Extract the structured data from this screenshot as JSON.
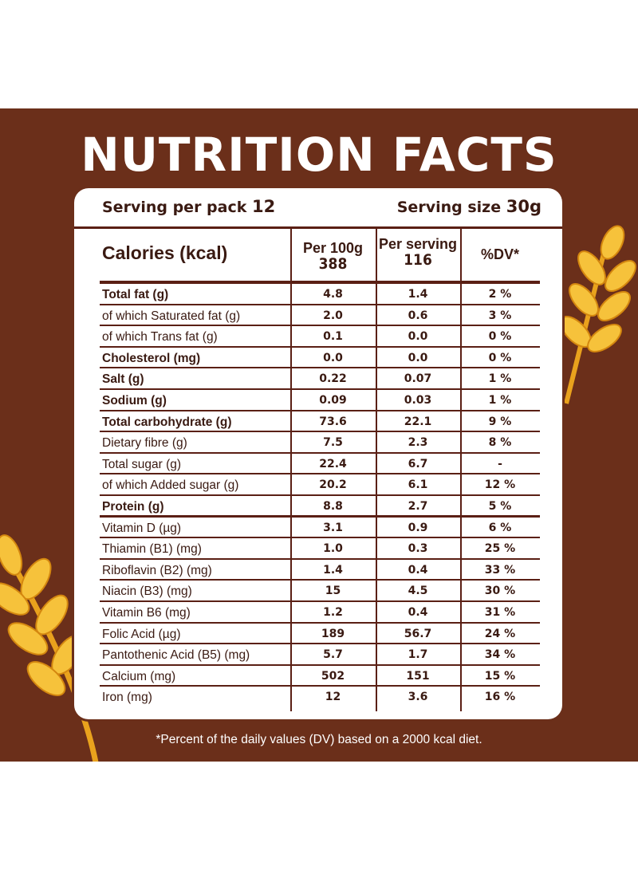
{
  "title": "NUTRITION FACTS",
  "serving": {
    "per_pack_label": "Serving per pack",
    "per_pack_value": "12",
    "size_label": "Serving size",
    "size_value": "30g"
  },
  "header": {
    "calories_label": "Calories (kcal)",
    "col1_label": "Per 100g",
    "col1_value": "388",
    "col2_label": "Per serving",
    "col2_value": "116",
    "col3_label": "%DV*"
  },
  "rows": [
    {
      "name": "Total fat (g)",
      "per100": "4.8",
      "perServing": "1.4",
      "dv": "2 %",
      "bold": true
    },
    {
      "name": "of which Saturated fat (g)",
      "per100": "2.0",
      "perServing": "0.6",
      "dv": "3 %",
      "bold": false
    },
    {
      "name": "of which Trans fat (g)",
      "per100": "0.1",
      "perServing": "0.0",
      "dv": "0 %",
      "bold": false
    },
    {
      "name": "Cholesterol (mg)",
      "per100": "0.0",
      "perServing": "0.0",
      "dv": "0 %",
      "bold": true
    },
    {
      "name": "Salt (g)",
      "per100": "0.22",
      "perServing": "0.07",
      "dv": "1 %",
      "bold": true
    },
    {
      "name": "Sodium (g)",
      "per100": "0.09",
      "perServing": "0.03",
      "dv": "1 %",
      "bold": true
    },
    {
      "name": "Total carbohydrate (g)",
      "per100": "73.6",
      "perServing": "22.1",
      "dv": "9 %",
      "bold": true
    },
    {
      "name": "Dietary fibre (g)",
      "per100": "7.5",
      "perServing": "2.3",
      "dv": "8 %",
      "bold": false
    },
    {
      "name": "Total sugar (g)",
      "per100": "22.4",
      "perServing": "6.7",
      "dv": "-",
      "bold": false
    },
    {
      "name": "of which Added sugar (g)",
      "per100": "20.2",
      "perServing": "6.1",
      "dv": "12 %",
      "bold": false
    },
    {
      "name": "Protein (g)",
      "per100": "8.8",
      "perServing": "2.7",
      "dv": "5 %",
      "bold": true
    },
    {
      "name": "Vitamin D (µg)",
      "per100": "3.1",
      "perServing": "0.9",
      "dv": "6 %",
      "bold": false
    },
    {
      "name": "Thiamin (B1) (mg)",
      "per100": "1.0",
      "perServing": "0.3",
      "dv": "25 %",
      "bold": false
    },
    {
      "name": "Riboflavin (B2) (mg)",
      "per100": "1.4",
      "perServing": "0.4",
      "dv": "33 %",
      "bold": false
    },
    {
      "name": "Niacin (B3) (mg)",
      "per100": "15",
      "perServing": "4.5",
      "dv": "30 %",
      "bold": false
    },
    {
      "name": "Vitamin B6 (mg)",
      "per100": "1.2",
      "perServing": "0.4",
      "dv": "31 %",
      "bold": false
    },
    {
      "name": "Folic Acid (µg)",
      "per100": "189",
      "perServing": "56.7",
      "dv": "24 %",
      "bold": false
    },
    {
      "name": "Pantothenic Acid (B5) (mg)",
      "per100": "5.7",
      "perServing": "1.7",
      "dv": "34 %",
      "bold": false
    },
    {
      "name": "Calcium (mg)",
      "per100": "502",
      "perServing": "151",
      "dv": "15 %",
      "bold": false
    },
    {
      "name": "Iron (mg)",
      "per100": "12",
      "perServing": "3.6",
      "dv": "16 %",
      "bold": false
    }
  ],
  "footnote": "*Percent of the daily values (DV) based on a 2000 kcal diet.",
  "colors": {
    "background": "#6b2f1a",
    "rule": "#5a1f14",
    "text": "#3a1a12",
    "wheat": "#f2b52a"
  }
}
